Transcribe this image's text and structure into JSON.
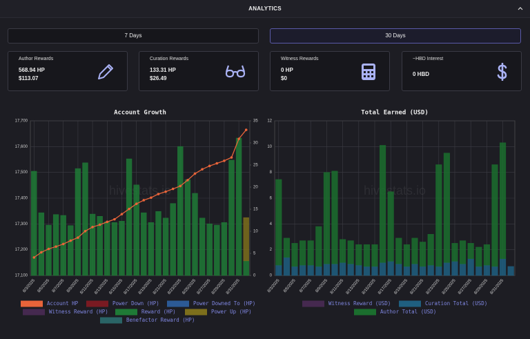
{
  "header": {
    "title": "ANALYTICS"
  },
  "tabs": [
    "7 Days",
    "30 Days"
  ],
  "cards": [
    {
      "title": "Author Rewards",
      "lines": [
        "568.94 HP",
        "$113.07"
      ]
    },
    {
      "title": "Curation Rewards",
      "lines": [
        "133.31 HP",
        "$26.49"
      ]
    },
    {
      "title": "Witness Rewards",
      "lines": [
        "0 HP",
        "$0"
      ]
    },
    {
      "title": "~HBD Interest",
      "lines": [
        "0 HBD"
      ]
    }
  ],
  "chart_data": [
    {
      "type": "bar",
      "title": "Account Growth",
      "watermark": "hivestats.io",
      "categories": [
        "8/3/2025",
        null,
        "8/5/2025",
        null,
        "8/7/2025",
        null,
        "8/9/2025",
        null,
        "8/11/2025",
        null,
        "8/13/2025",
        null,
        "8/15/2025",
        null,
        "8/17/2025",
        null,
        "8/19/2025",
        null,
        "8/21/2025",
        null,
        "8/23/2025",
        null,
        "8/25/2025",
        null,
        "8/27/2025",
        null,
        "8/29/2025",
        null,
        "8/31/2025",
        null
      ],
      "ylim": [
        17100,
        17700
      ],
      "yticks": [
        {
          "value": 17100,
          "label": "17,100"
        },
        {
          "value": 17200,
          "label": "17,200"
        },
        {
          "value": 17300,
          "label": "17,300"
        },
        {
          "value": 17400,
          "label": "17,400"
        },
        {
          "value": 17500,
          "label": "17,500"
        },
        {
          "value": 17600,
          "label": "17,600"
        },
        {
          "value": 17700,
          "label": "17,700"
        }
      ],
      "y2lim": [
        0,
        35
      ],
      "y2ticks": [
        0,
        5,
        10,
        15,
        20,
        25,
        30,
        35
      ],
      "grid": true,
      "series": [
        {
          "name": "Account HP",
          "type": "line",
          "color": "#e8643a",
          "values": [
            17170,
            17190,
            17203,
            17212,
            17222,
            17235,
            17247,
            17272,
            17288,
            17297,
            17308,
            17318,
            17338,
            17358,
            17378,
            17392,
            17402,
            17416,
            17425,
            17436,
            17447,
            17470,
            17495,
            17512,
            17525,
            17535,
            17545,
            17558,
            17630,
            17665
          ]
        },
        {
          "name": "Power Down (HP)",
          "axis": "y2",
          "color": "#7a1a22",
          "values": [
            0,
            0,
            0,
            0,
            0,
            0,
            0,
            0,
            0,
            0,
            0,
            0,
            0,
            0,
            0,
            0,
            0,
            0,
            0,
            0,
            0,
            0,
            0,
            0,
            0,
            0,
            0,
            0,
            0,
            0
          ]
        },
        {
          "name": "Power Downed To (HP)",
          "axis": "y2",
          "color": "#2c5a95",
          "values": [
            0,
            0,
            0,
            0,
            0,
            0,
            0,
            0,
            0,
            0,
            0,
            0,
            0,
            0,
            0,
            0,
            0,
            0,
            0,
            0,
            0,
            0,
            0,
            0,
            0,
            0,
            0,
            0,
            0,
            0
          ]
        },
        {
          "name": "Witness Reward (HP)",
          "axis": "y2",
          "color": "#45294f",
          "values": [
            0,
            0,
            0,
            0,
            0,
            0,
            0,
            0,
            0,
            0,
            0,
            0,
            0,
            0,
            0,
            0,
            0,
            0,
            0,
            0,
            0,
            0,
            0,
            0,
            0,
            0,
            0,
            0,
            0,
            0
          ]
        },
        {
          "name": "Reward (HP)",
          "axis": "y2",
          "color": "#1f7a36",
          "values": [
            23.6,
            14.2,
            11.4,
            13.8,
            13.6,
            11.3,
            24.2,
            25.5,
            13.9,
            13.4,
            12.2,
            12.0,
            12.3,
            26.4,
            20.5,
            14.2,
            12.0,
            14.5,
            13.0,
            16.3,
            29.2,
            21.7,
            18.6,
            13.0,
            11.7,
            11.4,
            12.0,
            26.1,
            31.1,
            3.3
          ]
        },
        {
          "name": "Power Up (HP)",
          "axis": "y2",
          "color": "#7d6f1c",
          "values": [
            0,
            0,
            0,
            0,
            0,
            0,
            0,
            0,
            0,
            0,
            0,
            0,
            0,
            0,
            0,
            0,
            0,
            0,
            0,
            0,
            0,
            0,
            0,
            0,
            0,
            0,
            0,
            0,
            0,
            9.8
          ]
        },
        {
          "name": "Benefactor Reward (HP)",
          "axis": "y2",
          "color": "#2a6466",
          "values": [
            0,
            0,
            0,
            0,
            0,
            0,
            0,
            0,
            0,
            0,
            0,
            0,
            0,
            0,
            0,
            0,
            0,
            0,
            0,
            0,
            0,
            0,
            0,
            0,
            0,
            0,
            0,
            0,
            0,
            0
          ]
        }
      ]
    },
    {
      "type": "bar",
      "title": "Total Earned (USD)",
      "watermark": "hivestats.io",
      "categories": [
        "8/3/2025",
        null,
        "8/5/2025",
        null,
        "8/7/2025",
        null,
        "8/9/2025",
        null,
        "8/11/2025",
        null,
        "8/13/2025",
        null,
        "8/15/2025",
        null,
        "8/17/2025",
        null,
        "8/19/2025",
        null,
        "8/21/2025",
        null,
        "8/23/2025",
        null,
        "8/25/2025",
        null,
        "8/27/2025",
        null,
        "8/29/2025",
        null,
        "8/31/2025",
        null
      ],
      "ylim": [
        0,
        12
      ],
      "yticks": [
        0,
        2,
        4,
        6,
        8,
        10,
        12
      ],
      "grid": true,
      "series": [
        {
          "name": "Witness Reward (USD)",
          "color": "#45294f",
          "values": [
            0,
            0,
            0,
            0,
            0,
            0,
            0,
            0,
            0,
            0,
            0,
            0,
            0,
            0,
            0,
            0,
            0,
            0,
            0,
            0,
            0,
            0,
            0,
            0,
            0,
            0,
            0,
            0,
            0,
            0
          ]
        },
        {
          "name": "Curation Total (USD)",
          "color": "#1f5f80",
          "values": [
            0.8,
            1.4,
            0.7,
            0.8,
            0.8,
            0.7,
            0.9,
            0.9,
            1.0,
            0.9,
            0.8,
            0.7,
            0.7,
            1.0,
            1.1,
            0.9,
            0.7,
            0.9,
            0.7,
            0.8,
            0.7,
            1.0,
            1.1,
            0.9,
            1.3,
            0.7,
            0.8,
            0.7,
            1.3,
            0.7
          ]
        },
        {
          "name": "Author Total (USD)",
          "color": "#1b6e2e",
          "values": [
            6.65,
            1.5,
            1.8,
            1.9,
            1.9,
            3.1,
            7.1,
            7.2,
            1.8,
            1.8,
            1.6,
            1.7,
            1.7,
            9.1,
            5.4,
            2.0,
            1.7,
            2.0,
            1.9,
            2.4,
            7.9,
            8.5,
            1.4,
            1.8,
            1.2,
            1.5,
            1.6,
            7.9,
            9.0,
            0
          ]
        }
      ]
    }
  ]
}
